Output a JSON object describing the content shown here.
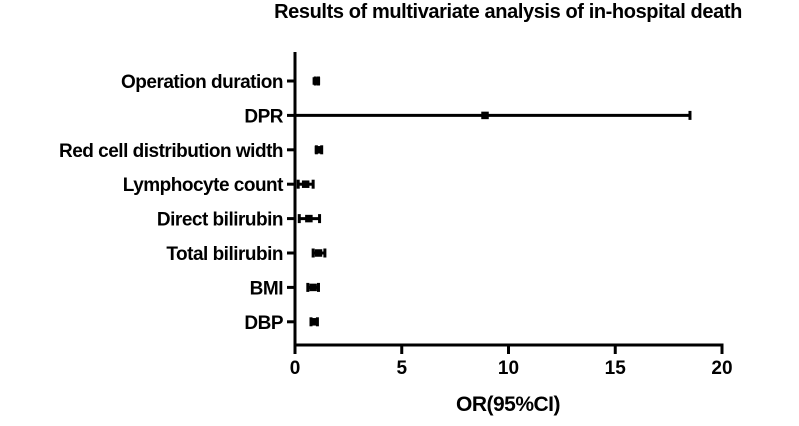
{
  "chart_data": {
    "type": "scatter",
    "subtype": "forest-plot",
    "title": "Results of multivariate analysis of in-hospital death",
    "xlabel": "OR(95%CI)",
    "xlim": [
      0,
      20
    ],
    "xticks": [
      "0",
      "5",
      "10",
      "15",
      "20"
    ],
    "grid": false,
    "legend": null,
    "axis_color": "#000000",
    "marker_color": "#000000",
    "background_color": "#ffffff",
    "categories": [
      "Operation duration",
      "DPR",
      "Red cell distribution width",
      "Lymphocyte count",
      "Direct bilirubin",
      "Total bilirubin",
      "BMI",
      "DBP"
    ],
    "points": [
      {
        "label": "Operation duration",
        "or": 1.0,
        "ci_low": 0.95,
        "ci_high": 1.1
      },
      {
        "label": "DPR",
        "or": 8.9,
        "ci_low": 0.0,
        "ci_high": 18.5
      },
      {
        "label": "Red cell distribution width",
        "or": 1.1,
        "ci_low": 1.0,
        "ci_high": 1.25
      },
      {
        "label": "Lymphocyte count",
        "or": 0.5,
        "ci_low": 0.15,
        "ci_high": 0.85
      },
      {
        "label": "Direct bilirubin",
        "or": 0.65,
        "ci_low": 0.2,
        "ci_high": 1.15
      },
      {
        "label": "Total bilirubin",
        "or": 1.1,
        "ci_low": 0.85,
        "ci_high": 1.4
      },
      {
        "label": "BMI",
        "or": 0.85,
        "ci_low": 0.6,
        "ci_high": 1.1
      },
      {
        "label": "DBP",
        "or": 0.9,
        "ci_low": 0.75,
        "ci_high": 1.05
      }
    ]
  }
}
